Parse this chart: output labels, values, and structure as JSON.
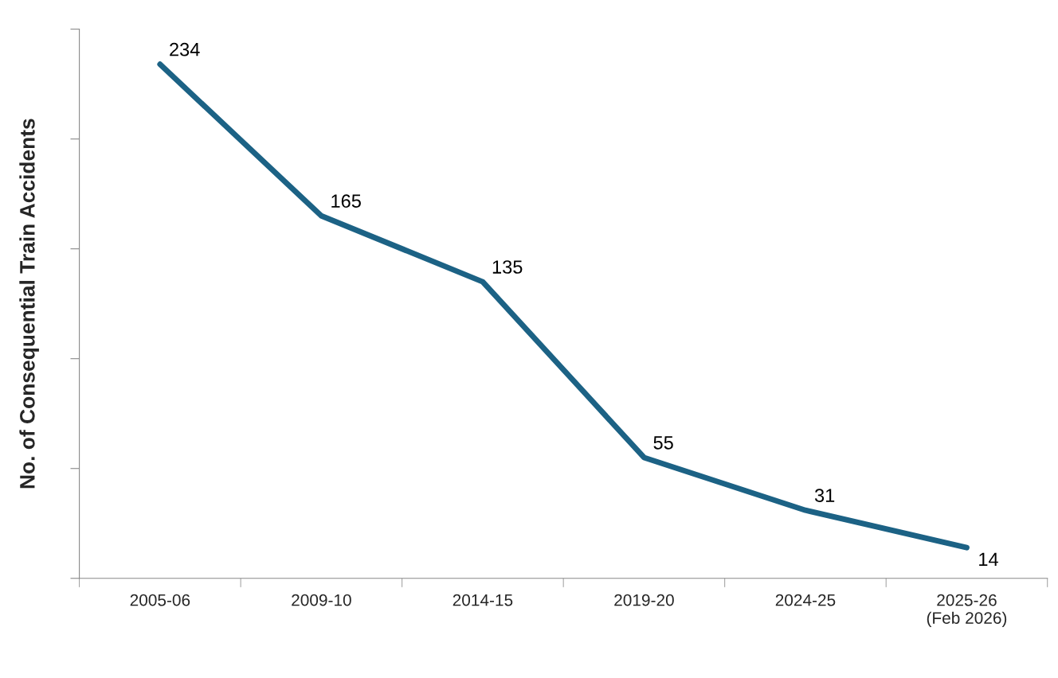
{
  "chart_data": {
    "type": "line",
    "ylabel": "No. of Consequential Train Accidents",
    "categories": [
      "2005-06",
      "2009-10",
      "2014-15",
      "2019-20",
      "2024-25",
      "2025-26\n(Feb 2026)"
    ],
    "series": [
      {
        "color": "#1c6285",
        "values": [
          234,
          165,
          135,
          55,
          31,
          14
        ]
      }
    ],
    "ylim": [
      0,
      250
    ],
    "yticks": [
      {
        "value": 0,
        "label": null
      },
      {
        "value": 50,
        "label": null
      },
      {
        "value": 100,
        "label": null
      },
      {
        "value": 150,
        "label": null
      },
      {
        "value": 200,
        "label": null
      },
      {
        "value": 250,
        "label": null
      }
    ],
    "tick_labels": "x",
    "data_labels": true,
    "grid": false,
    "legend": false,
    "marker": "none",
    "line_style": "solid"
  }
}
